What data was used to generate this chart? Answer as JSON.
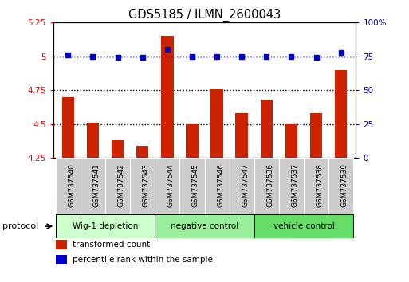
{
  "title": "GDS5185 / ILMN_2600043",
  "samples": [
    "GSM737540",
    "GSM737541",
    "GSM737542",
    "GSM737543",
    "GSM737544",
    "GSM737545",
    "GSM737546",
    "GSM737547",
    "GSM737536",
    "GSM737537",
    "GSM737538",
    "GSM737539"
  ],
  "transformed_counts": [
    4.7,
    4.51,
    4.38,
    4.34,
    5.15,
    4.5,
    4.76,
    4.58,
    4.68,
    4.5,
    4.58,
    4.9
  ],
  "percentile_ranks": [
    76,
    75,
    74,
    74,
    80,
    75,
    75,
    75,
    75,
    75,
    74,
    78
  ],
  "ylim_left": [
    4.25,
    5.25
  ],
  "ylim_right": [
    0,
    100
  ],
  "yticks_left": [
    4.25,
    4.5,
    4.75,
    5.0,
    5.25
  ],
  "yticks_right": [
    0,
    25,
    50,
    75,
    100
  ],
  "ytick_labels_left": [
    "4.25",
    "4.5",
    "4.75",
    "5",
    "5.25"
  ],
  "ytick_labels_right": [
    "0",
    "25",
    "50",
    "75",
    "100%"
  ],
  "bar_color": "#cc2200",
  "dot_color": "#0000cc",
  "dot_line_color": "#0000cc",
  "hlines": [
    4.5,
    4.75,
    5.0
  ],
  "groups": [
    {
      "label": "Wig-1 depletion",
      "start": 0,
      "end": 4,
      "color": "#ccffcc"
    },
    {
      "label": "negative control",
      "start": 4,
      "end": 8,
      "color": "#99ee99"
    },
    {
      "label": "vehicle control",
      "start": 8,
      "end": 12,
      "color": "#66dd66"
    }
  ],
  "protocol_label": "protocol",
  "legend_items": [
    {
      "color": "#cc2200",
      "label": "transformed count"
    },
    {
      "color": "#0000cc",
      "label": "percentile rank within the sample"
    }
  ],
  "sample_label_bg": "#cccccc",
  "bar_width": 0.5
}
